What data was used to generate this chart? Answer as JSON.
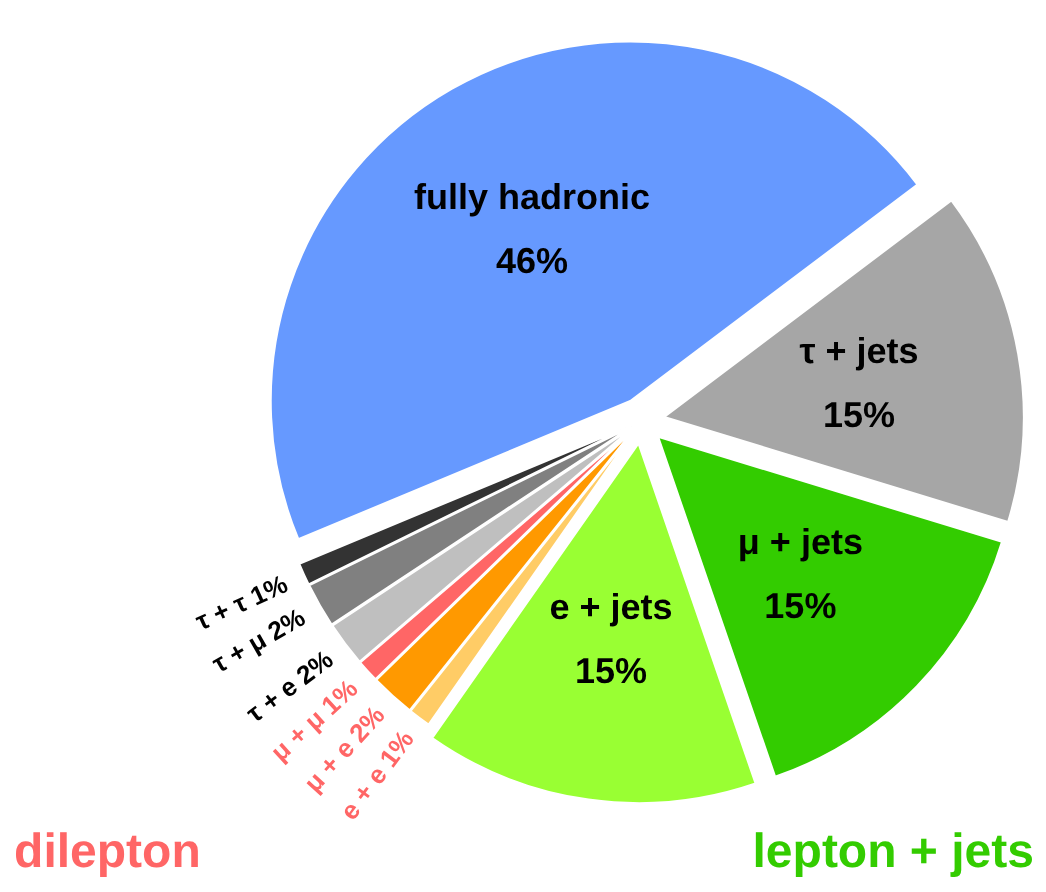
{
  "chart_data": {
    "type": "pie",
    "categories": [
      "fully hadronic",
      "τ + τ",
      "τ + μ",
      "τ + e",
      "μ + μ",
      "μ + e",
      "e + e",
      "e + jets",
      "μ + jets",
      "τ + jets"
    ],
    "values": [
      46,
      1,
      2,
      2,
      1,
      2,
      1,
      15,
      15,
      15
    ],
    "value_labels": [
      "46%",
      "1%",
      "2%",
      "2%",
      "1%",
      "2%",
      "1%",
      "15%",
      "15%",
      "15%"
    ],
    "colors": [
      "#6699ff",
      "#333333",
      "#808080",
      "#bfbfbf",
      "#ff6666",
      "#ff9900",
      "#ffcc66",
      "#99ff33",
      "#33cc00",
      "#a6a6a6"
    ],
    "annotations": [
      "dilepton",
      "lepton + jets"
    ]
  }
}
